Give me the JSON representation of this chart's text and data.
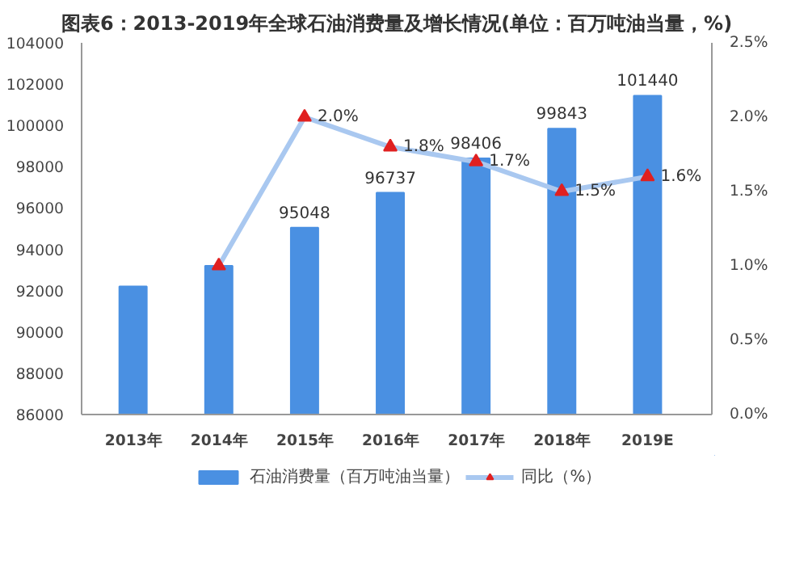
{
  "chart_data": {
    "type": "bar",
    "title": "图表6：2013-2019年全球石油消费量及增长情况(单位：百万吨油当量，%)",
    "categories": [
      "2013年",
      "2014年",
      "2015年",
      "2016年",
      "2017年",
      "2018年",
      "2019E"
    ],
    "series": [
      {
        "name": "石油消费量（百万吨油当量）",
        "color": "#4a90e2",
        "values": [
          92200,
          93200,
          95048,
          96737,
          98406,
          99843,
          101440
        ],
        "value_labels": [
          null,
          null,
          "95048",
          "96737",
          "98406",
          "99843",
          "101440"
        ]
      },
      {
        "name": "同比（%）",
        "type": "line",
        "axis": "y2",
        "color": "#a9c8f0",
        "marker": "triangle",
        "values": [
          null,
          1.0,
          2.0,
          1.8,
          1.7,
          1.5,
          1.6
        ],
        "value_labels": [
          null,
          null,
          "2.0%",
          "1.8%",
          "1.7%",
          "1.5%",
          "1.6%"
        ]
      }
    ],
    "ylim": [
      86000,
      104000
    ],
    "yticks": [
      86000,
      88000,
      90000,
      92000,
      94000,
      96000,
      98000,
      100000,
      102000,
      104000
    ],
    "y2lim": [
      0,
      2.5
    ],
    "y2ticks": [
      {
        "value": 0,
        "label": "0.0%"
      },
      {
        "value": 0.5,
        "label": "0.5%"
      },
      {
        "value": 1.0,
        "label": "1.0%"
      },
      {
        "value": 1.5,
        "label": "1.5%"
      },
      {
        "value": 2.0,
        "label": "2.0%"
      },
      {
        "value": 2.5,
        "label": "2.5%"
      }
    ],
    "grid": false,
    "legend": "bottom"
  }
}
